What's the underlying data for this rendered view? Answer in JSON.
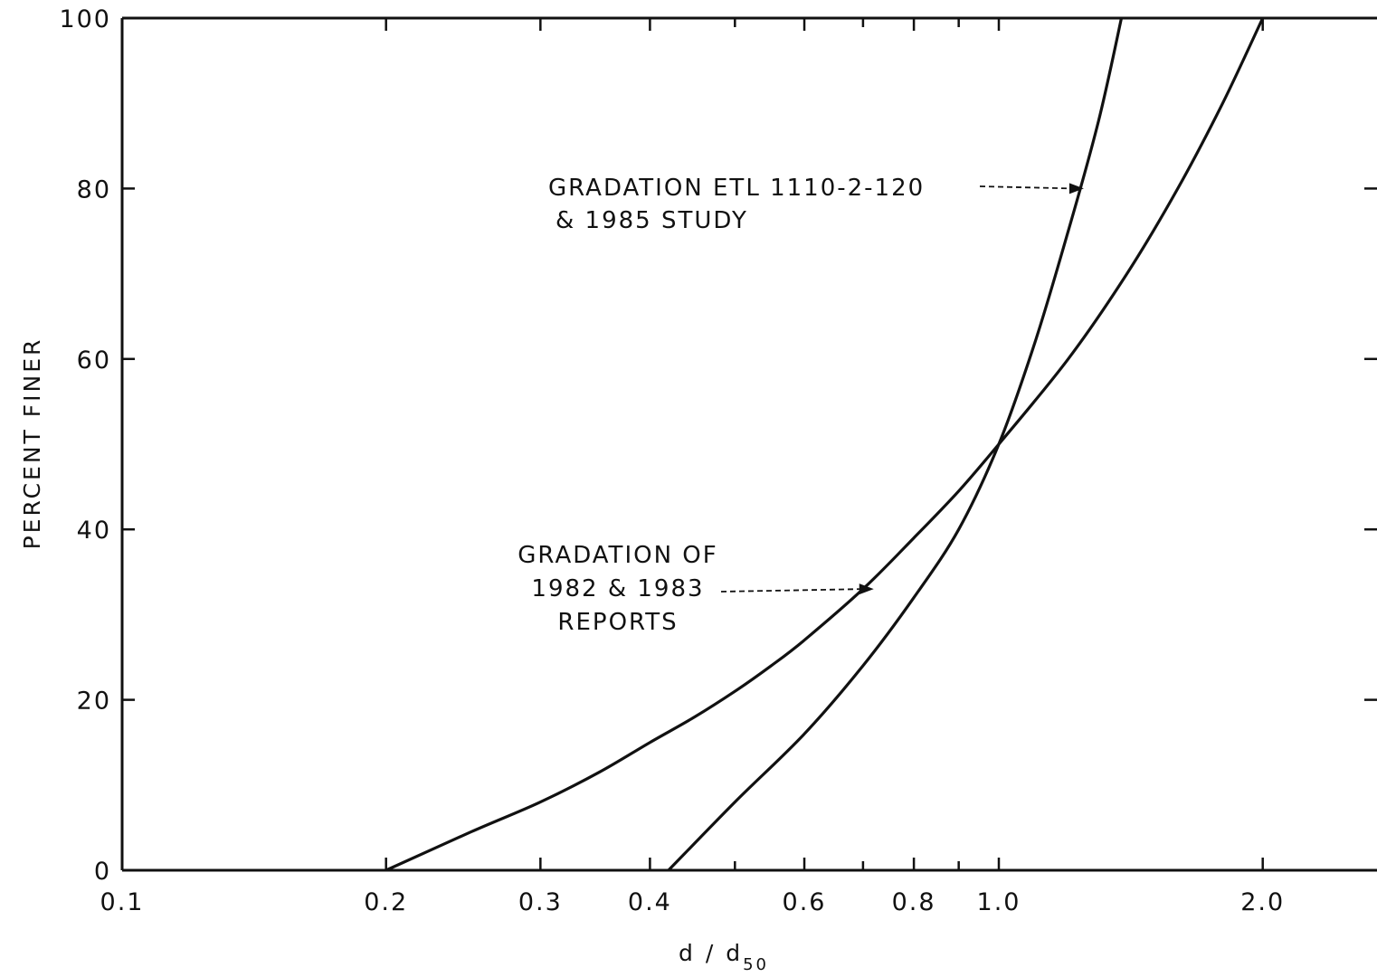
{
  "chart_data": {
    "type": "line",
    "title": "",
    "xlabel": "d / d",
    "xlabel_subscript": "50",
    "ylabel": "PERCENT FINER",
    "x_scale": "log",
    "xlim": [
      0.1,
      2.7
    ],
    "ylim": [
      0,
      100
    ],
    "x_tick_values": [
      0.1,
      0.2,
      0.3,
      0.4,
      0.6,
      0.8,
      1.0,
      2.0
    ],
    "x_tick_labels": [
      "0.1",
      "0.2",
      "0.3",
      "0.4",
      "0.6",
      "0.8",
      "1.0",
      "2.0"
    ],
    "x_minor_ticks": [
      0.5,
      0.7,
      0.9
    ],
    "y_tick_values": [
      0,
      20,
      40,
      60,
      80,
      100
    ],
    "y_tick_labels": [
      "0",
      "20",
      "40",
      "60",
      "80",
      "100"
    ],
    "grid": false,
    "series": [
      {
        "x": [
          0.2,
          0.25,
          0.3,
          0.35,
          0.4,
          0.45,
          0.5,
          0.55,
          0.6,
          0.7,
          0.8,
          0.9,
          1.0,
          1.2,
          1.4,
          1.6,
          1.8,
          2.0
        ],
        "y": [
          0,
          4.5,
          8,
          11.5,
          15,
          18,
          21,
          24,
          27,
          33,
          39,
          44.5,
          50,
          60,
          70,
          80,
          90,
          100
        ]
      },
      {
        "x": [
          0.42,
          0.5,
          0.6,
          0.7,
          0.8,
          0.9,
          1.0,
          1.1,
          1.2,
          1.3,
          1.38
        ],
        "y": [
          0,
          8,
          16,
          24,
          32,
          40,
          50,
          62,
          75,
          88,
          100
        ]
      }
    ],
    "annotations": [
      {
        "lines": [
          "GRADATION ETL 1110-2-120",
          "& 1985 STUDY"
        ],
        "points_to": {
          "x": 1.25,
          "y": 80
        }
      },
      {
        "lines": [
          "GRADATION OF",
          "1982 & 1983",
          "REPORTS"
        ],
        "points_to": {
          "x": 0.72,
          "y": 33
        }
      }
    ]
  }
}
